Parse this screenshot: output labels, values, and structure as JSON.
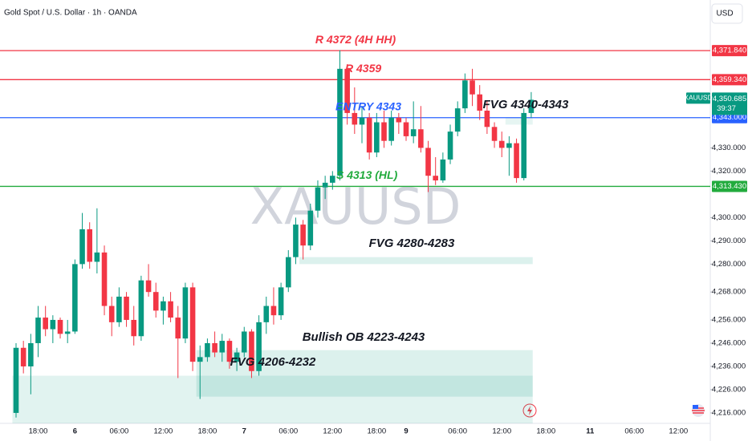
{
  "chart_data": {
    "type": "candlestick",
    "header": "Gold Spot / U.S. Dollar · 1h · OANDA",
    "currency_button": "USD",
    "watermark": "XAUUSD",
    "symbol_tag": "XAUUSD",
    "countdown": "39:37",
    "price_tag": {
      "value": 4350.685,
      "label": "4,350.685"
    },
    "up_color": "#089981",
    "down_color": "#f23645",
    "categories": [
      null,
      null,
      null,
      "18:00",
      null,
      null,
      null,
      null,
      "6",
      null,
      null,
      null,
      null,
      null,
      "06:00",
      null,
      null,
      null,
      null,
      null,
      "12:00",
      null,
      null,
      null,
      null,
      null,
      "18:00",
      null,
      null,
      null,
      null,
      "7",
      null,
      null,
      null,
      null,
      null,
      "06:00",
      null,
      null,
      null,
      null,
      null,
      "12:00",
      null,
      null,
      null,
      null,
      null,
      "18:00",
      null,
      null,
      null,
      "9",
      null,
      null,
      null,
      null,
      null,
      null,
      "06:00",
      null,
      null,
      null,
      null,
      null,
      "12:00",
      null,
      null,
      null,
      null,
      null,
      "18:00",
      null,
      null,
      null,
      null,
      null,
      "11",
      null,
      null,
      null,
      null,
      null,
      "06:00",
      null,
      null,
      null,
      null,
      null,
      "12:00"
    ],
    "open": [
      4216,
      4244,
      4236,
      4246,
      4257,
      4252,
      4256,
      4250,
      4251,
      4280,
      4295,
      4281,
      4285,
      4262,
      4255,
      4266,
      4256,
      4249,
      4273,
      4268,
      4260,
      4264,
      4257,
      4248,
      4270,
      4238,
      4240,
      4246,
      4242,
      4247,
      4238,
      4242,
      4251,
      4234,
      4255,
      4262,
      4258,
      4270,
      4283,
      4297,
      4288,
      4303,
      4313,
      4315,
      4318,
      4364,
      4345,
      4340,
      4343,
      4328,
      4341,
      4333,
      4343,
      4341,
      4335,
      4338,
      4330,
      4318,
      4316,
      4325,
      4337,
      4347,
      4359,
      4353,
      4346,
      4339,
      4333,
      4330,
      4332,
      4317,
      4345,
      null,
      null,
      null,
      null,
      null,
      null,
      null,
      null,
      null,
      null,
      null,
      null,
      null,
      null,
      null,
      null,
      null,
      null,
      null,
      null
    ],
    "high": [
      4246,
      4247,
      4250,
      4262,
      4262,
      4258,
      4257,
      4256,
      4282,
      4302,
      4298,
      4304,
      4288,
      4266,
      4270,
      4268,
      4262,
      4275,
      4280,
      4272,
      4266,
      4268,
      4262,
      4272,
      4272,
      4245,
      4248,
      4251,
      4250,
      4248,
      4244,
      4253,
      4252,
      4258,
      4266,
      4270,
      4272,
      4286,
      4300,
      4299,
      4306,
      4316,
      4318,
      4320,
      4372,
      4366,
      4356,
      4348,
      4345,
      4345,
      4346,
      4346,
      4345,
      4343,
      4350,
      4348,
      4333,
      4326,
      4328,
      4340,
      4350,
      4362,
      4364,
      4357,
      4350,
      4341,
      4337,
      4335,
      4334,
      4347,
      4354,
      null,
      null,
      null,
      null,
      null,
      null,
      null,
      null,
      null,
      null,
      null,
      null,
      null,
      null,
      null,
      null,
      null,
      null,
      null,
      null
    ],
    "low": [
      4214,
      4233,
      4224,
      4240,
      4249,
      4246,
      4248,
      4246,
      4250,
      4278,
      4278,
      4276,
      4258,
      4249,
      4253,
      4253,
      4245,
      4247,
      4266,
      4257,
      4254,
      4255,
      4231,
      4246,
      4234,
      4222,
      4238,
      4240,
      4238,
      4235,
      4234,
      4240,
      4231,
      4232,
      4250,
      4254,
      4256,
      4268,
      4280,
      4282,
      4286,
      4300,
      4308,
      4312,
      4316,
      4340,
      4336,
      4332,
      4325,
      4326,
      4330,
      4331,
      4336,
      4333,
      4332,
      4328,
      4311,
      4314,
      4315,
      4323,
      4335,
      4345,
      4348,
      4342,
      4336,
      4330,
      4326,
      4318,
      4315,
      4316,
      4343,
      null,
      null,
      null,
      null,
      null,
      null,
      null,
      null,
      null,
      null,
      null,
      null,
      null,
      null,
      null,
      null,
      null,
      null,
      null,
      null
    ],
    "close": [
      4244,
      4236,
      4246,
      4257,
      4252,
      4256,
      4250,
      4251,
      4280,
      4295,
      4281,
      4285,
      4262,
      4255,
      4266,
      4256,
      4249,
      4273,
      4268,
      4260,
      4264,
      4257,
      4248,
      4270,
      4238,
      4240,
      4246,
      4242,
      4247,
      4238,
      4242,
      4251,
      4234,
      4255,
      4262,
      4258,
      4270,
      4283,
      4297,
      4288,
      4303,
      4313,
      4315,
      4318,
      4364,
      4345,
      4340,
      4343,
      4328,
      4341,
      4333,
      4343,
      4341,
      4335,
      4338,
      4330,
      4318,
      4316,
      4325,
      4337,
      4347,
      4359,
      4353,
      4346,
      4339,
      4333,
      4330,
      4332,
      4317,
      4345,
      4350.685,
      null,
      null,
      null,
      null,
      null,
      null,
      null,
      null,
      null,
      null,
      null,
      null,
      null,
      null,
      null,
      null,
      null,
      null,
      null,
      null
    ],
    "ylim": [
      4211.5,
      4393.6
    ],
    "yticks": [
      {
        "value": 4330,
        "label": "4,330.000"
      },
      {
        "value": 4320,
        "label": "4,320.000"
      },
      {
        "value": 4300,
        "label": "4,300.000"
      },
      {
        "value": 4290,
        "label": "4,290.000"
      },
      {
        "value": 4280,
        "label": "4,280.000"
      },
      {
        "value": 4268,
        "label": "4,268.000"
      },
      {
        "value": 4256,
        "label": "4,256.000"
      },
      {
        "value": 4246,
        "label": "4,246.000"
      },
      {
        "value": 4236,
        "label": "4,236.000"
      },
      {
        "value": 4226,
        "label": "4,226.000"
      },
      {
        "value": 4216,
        "label": "4,216.000"
      }
    ],
    "levels": [
      {
        "value": 4371.84,
        "label": "4,371.840",
        "note": "R 4372 (4H HH)",
        "color": "#f23645"
      },
      {
        "value": 4359.34,
        "label": "4,359.340",
        "note": "R 4359",
        "color": "#f23645"
      },
      {
        "value": 4343,
        "label": "4,343.000",
        "note": "ENTRY 4343",
        "color": "#2962ff"
      },
      {
        "value": 4313.43,
        "label": "4,313.430",
        "note": "S 4313 (HL)",
        "color": "#22ab3d"
      }
    ],
    "zones": [
      {
        "label": "Bullish OB 4223-4243",
        "low": 4223,
        "high": 4243
      },
      {
        "label": "FVG 4206-4232",
        "low": 4206,
        "high": 4232
      },
      {
        "label": "FVG 4280-4283",
        "low": 4280,
        "high": 4283
      },
      {
        "label": "FVG 4340-4343",
        "low": 4340,
        "high": 4343
      }
    ]
  }
}
